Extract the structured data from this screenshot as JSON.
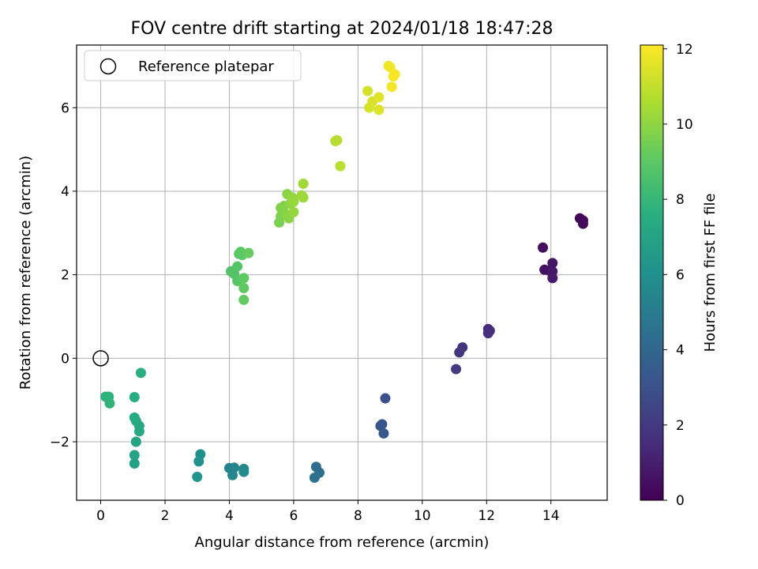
{
  "chart_data": {
    "type": "scatter",
    "title": "FOV centre drift starting at 2024/01/18 18:47:28",
    "xlabel": "Angular distance from reference (arcmin)",
    "ylabel": "Rotation from reference (arcmin)",
    "xlim": [
      -0.75,
      15.75
    ],
    "ylim": [
      -3.4,
      7.5
    ],
    "xticks": [
      0,
      2,
      4,
      6,
      8,
      10,
      12,
      14
    ],
    "yticks": [
      -2,
      0,
      2,
      4,
      6
    ],
    "grid": true,
    "legend": {
      "position": "top-left",
      "entries": [
        "Reference platepar"
      ]
    },
    "reference": {
      "x": 0,
      "y": 0
    },
    "colorbar": {
      "label": "Hours from first FF file",
      "range": [
        0,
        12.1
      ],
      "ticks": [
        0,
        2,
        4,
        6,
        8,
        10,
        12
      ],
      "colormap": "viridis"
    },
    "points": [
      {
        "x": 14.9,
        "y": 3.35,
        "c": 0.1
      },
      {
        "x": 15.0,
        "y": 3.3,
        "c": 0.2
      },
      {
        "x": 15.0,
        "y": 3.22,
        "c": 0.3
      },
      {
        "x": 13.75,
        "y": 2.65,
        "c": 0.4
      },
      {
        "x": 13.8,
        "y": 2.12,
        "c": 0.5
      },
      {
        "x": 13.95,
        "y": 2.1,
        "c": 0.6
      },
      {
        "x": 14.05,
        "y": 2.28,
        "c": 0.7
      },
      {
        "x": 14.05,
        "y": 2.08,
        "c": 0.8
      },
      {
        "x": 14.05,
        "y": 1.92,
        "c": 0.9
      },
      {
        "x": 12.05,
        "y": 0.7,
        "c": 1.4
      },
      {
        "x": 12.1,
        "y": 0.66,
        "c": 1.5
      },
      {
        "x": 12.05,
        "y": 0.6,
        "c": 1.6
      },
      {
        "x": 11.25,
        "y": 0.26,
        "c": 1.8
      },
      {
        "x": 11.15,
        "y": 0.14,
        "c": 1.9
      },
      {
        "x": 11.05,
        "y": -0.26,
        "c": 2.0
      },
      {
        "x": 8.85,
        "y": -0.96,
        "c": 3.0
      },
      {
        "x": 8.75,
        "y": -1.58,
        "c": 3.1
      },
      {
        "x": 8.7,
        "y": -1.62,
        "c": 3.2
      },
      {
        "x": 8.8,
        "y": -1.8,
        "c": 3.3
      },
      {
        "x": 6.7,
        "y": -2.6,
        "c": 4.3
      },
      {
        "x": 6.8,
        "y": -2.74,
        "c": 4.4
      },
      {
        "x": 6.65,
        "y": -2.86,
        "c": 4.5
      },
      {
        "x": 4.0,
        "y": -2.63,
        "c": 5.3
      },
      {
        "x": 4.15,
        "y": -2.62,
        "c": 5.4
      },
      {
        "x": 4.1,
        "y": -2.8,
        "c": 5.5
      },
      {
        "x": 4.45,
        "y": -2.65,
        "c": 5.6
      },
      {
        "x": 4.45,
        "y": -2.72,
        "c": 5.7
      },
      {
        "x": 3.1,
        "y": -2.3,
        "c": 6.0
      },
      {
        "x": 3.05,
        "y": -2.47,
        "c": 6.1
      },
      {
        "x": 3.0,
        "y": -2.84,
        "c": 6.2
      },
      {
        "x": 1.05,
        "y": -2.52,
        "c": 6.9
      },
      {
        "x": 1.05,
        "y": -2.32,
        "c": 7.0
      },
      {
        "x": 1.1,
        "y": -2.0,
        "c": 7.1
      },
      {
        "x": 1.2,
        "y": -1.62,
        "c": 7.2
      },
      {
        "x": 1.2,
        "y": -1.75,
        "c": 7.25
      },
      {
        "x": 1.1,
        "y": -1.5,
        "c": 7.3
      },
      {
        "x": 1.05,
        "y": -1.42,
        "c": 7.4
      },
      {
        "x": 1.05,
        "y": -0.93,
        "c": 7.5
      },
      {
        "x": 1.25,
        "y": -0.35,
        "c": 7.6
      },
      {
        "x": 0.15,
        "y": -0.92,
        "c": 7.7
      },
      {
        "x": 0.25,
        "y": -0.92,
        "c": 7.75
      },
      {
        "x": 0.28,
        "y": -1.08,
        "c": 7.8
      },
      {
        "x": 4.05,
        "y": 2.08,
        "c": 8.7
      },
      {
        "x": 4.15,
        "y": 2.02,
        "c": 8.75
      },
      {
        "x": 4.25,
        "y": 2.2,
        "c": 8.8
      },
      {
        "x": 4.25,
        "y": 1.85,
        "c": 8.85
      },
      {
        "x": 4.3,
        "y": 2.5,
        "c": 8.9
      },
      {
        "x": 4.35,
        "y": 2.55,
        "c": 8.95
      },
      {
        "x": 4.4,
        "y": 2.47,
        "c": 9.0
      },
      {
        "x": 4.45,
        "y": 1.92,
        "c": 9.05
      },
      {
        "x": 4.45,
        "y": 1.68,
        "c": 9.1
      },
      {
        "x": 4.45,
        "y": 1.4,
        "c": 9.15
      },
      {
        "x": 4.6,
        "y": 2.52,
        "c": 9.2
      },
      {
        "x": 5.55,
        "y": 3.25,
        "c": 9.6
      },
      {
        "x": 5.6,
        "y": 3.4,
        "c": 9.65
      },
      {
        "x": 5.6,
        "y": 3.6,
        "c": 9.7
      },
      {
        "x": 5.65,
        "y": 3.55,
        "c": 9.75
      },
      {
        "x": 5.7,
        "y": 3.65,
        "c": 9.8
      },
      {
        "x": 5.75,
        "y": 3.45,
        "c": 9.85
      },
      {
        "x": 5.8,
        "y": 3.93,
        "c": 9.9
      },
      {
        "x": 5.85,
        "y": 3.35,
        "c": 9.95
      },
      {
        "x": 5.9,
        "y": 3.7,
        "c": 10.0
      },
      {
        "x": 5.95,
        "y": 3.85,
        "c": 10.05
      },
      {
        "x": 6.0,
        "y": 3.5,
        "c": 10.1
      },
      {
        "x": 6.0,
        "y": 3.75,
        "c": 10.15
      },
      {
        "x": 6.25,
        "y": 3.9,
        "c": 10.25
      },
      {
        "x": 6.3,
        "y": 3.85,
        "c": 10.3
      },
      {
        "x": 6.3,
        "y": 4.18,
        "c": 10.35
      },
      {
        "x": 7.3,
        "y": 5.2,
        "c": 10.7
      },
      {
        "x": 7.35,
        "y": 5.22,
        "c": 10.75
      },
      {
        "x": 7.45,
        "y": 4.6,
        "c": 10.8
      },
      {
        "x": 8.3,
        "y": 6.4,
        "c": 11.3
      },
      {
        "x": 8.35,
        "y": 6.0,
        "c": 11.35
      },
      {
        "x": 8.45,
        "y": 6.15,
        "c": 11.4
      },
      {
        "x": 8.65,
        "y": 5.95,
        "c": 11.5
      },
      {
        "x": 8.65,
        "y": 6.25,
        "c": 11.55
      },
      {
        "x": 8.95,
        "y": 7.0,
        "c": 11.8
      },
      {
        "x": 9.0,
        "y": 6.97,
        "c": 11.85
      },
      {
        "x": 9.05,
        "y": 6.5,
        "c": 11.9
      },
      {
        "x": 9.1,
        "y": 6.75,
        "c": 11.95
      },
      {
        "x": 9.15,
        "y": 6.8,
        "c": 12.0
      }
    ]
  }
}
